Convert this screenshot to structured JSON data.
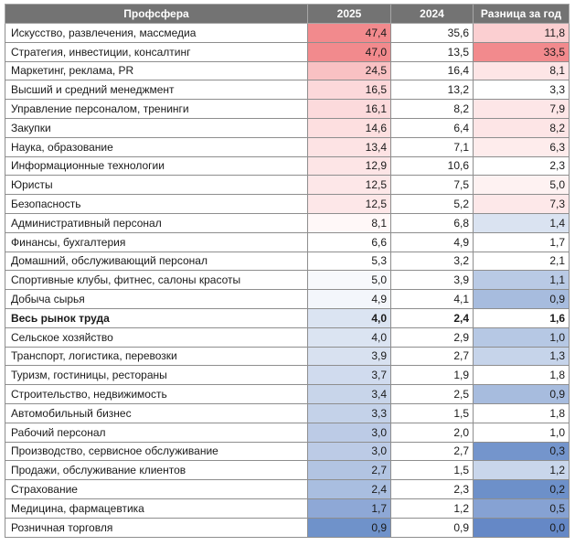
{
  "headers": {
    "name": "Профсфера",
    "y2025": "2025",
    "y2024": "2024",
    "diff": "Разница за год"
  },
  "rows": [
    {
      "name": "Искусство, развлечения, массмедиа",
      "y2025": "47,4",
      "y2024": "35,6",
      "diff": "11,8",
      "c25": "#f28a8d",
      "cdiff": "#fbcfd1"
    },
    {
      "name": "Стратегия, инвестиции, консалтинг",
      "y2025": "47,0",
      "y2024": "13,5",
      "diff": "33,5",
      "c25": "#f28a8d",
      "cdiff": "#f28a8d"
    },
    {
      "name": "Маркетинг, реклама, PR",
      "y2025": "24,5",
      "y2024": "16,4",
      "diff": "8,1",
      "c25": "#f9c1c3",
      "cdiff": "#fde5e6"
    },
    {
      "name": "Высший и средний менеджмент",
      "y2025": "16,5",
      "y2024": "13,2",
      "diff": "3,3",
      "c25": "#fcd8da",
      "cdiff": "#ffffff"
    },
    {
      "name": "Управление персоналом, тренинги",
      "y2025": "16,1",
      "y2024": "8,2",
      "diff": "7,9",
      "c25": "#fcdadc",
      "cdiff": "#fde6e7"
    },
    {
      "name": "Закупки",
      "y2025": "14,6",
      "y2024": "6,4",
      "diff": "8,2",
      "c25": "#fddfe0",
      "cdiff": "#fde5e6"
    },
    {
      "name": "Наука, образование",
      "y2025": "13,4",
      "y2024": "7,1",
      "diff": "6,3",
      "c25": "#fde3e4",
      "cdiff": "#feecec"
    },
    {
      "name": "Информационные технологии",
      "y2025": "12,9",
      "y2024": "10,6",
      "diff": "2,3",
      "c25": "#fde5e6",
      "cdiff": "#ffffff"
    },
    {
      "name": "Юристы",
      "y2025": "12,5",
      "y2024": "7,5",
      "diff": "5,0",
      "c25": "#fde7e8",
      "cdiff": "#fef2f2"
    },
    {
      "name": "Безопасность",
      "y2025": "12,5",
      "y2024": "5,2",
      "diff": "7,3",
      "c25": "#fde7e8",
      "cdiff": "#fde8e9"
    },
    {
      "name": "Административный персонал",
      "y2025": "8,1",
      "y2024": "6,8",
      "diff": "1,4",
      "c25": "#fff8f8",
      "cdiff": "#dae3f1"
    },
    {
      "name": "Финансы, бухгалтерия",
      "y2025": "6,6",
      "y2024": "4,9",
      "diff": "1,7",
      "c25": "#ffffff",
      "cdiff": "#ffffff"
    },
    {
      "name": "Домашний, обслуживающий персонал",
      "y2025": "5,3",
      "y2024": "3,2",
      "diff": "2,1",
      "c25": "#ffffff",
      "cdiff": "#ffffff"
    },
    {
      "name": "Спортивные клубы, фитнес, салоны красоты",
      "y2025": "5,0",
      "y2024": "3,9",
      "diff": "1,1",
      "c25": "#f7f9fc",
      "cdiff": "#b9cae5"
    },
    {
      "name": "Добыча сырья",
      "y2025": "4,9",
      "y2024": "4,1",
      "diff": "0,9",
      "c25": "#f3f6fb",
      "cdiff": "#a7bcde"
    },
    {
      "name": "Весь рынок труда",
      "y2025": "4,0",
      "y2024": "2,4",
      "diff": "1,6",
      "c25": "#dbe4f2",
      "cdiff": "#ffffff",
      "bold": true
    },
    {
      "name": "Сельское хозяйство",
      "y2025": "4,0",
      "y2024": "2,9",
      "diff": "1,0",
      "c25": "#dbe4f2",
      "cdiff": "#b6c8e4"
    },
    {
      "name": "Транспорт, логистика, перевозки",
      "y2025": "3,9",
      "y2024": "2,7",
      "diff": "1,3",
      "c25": "#d8e1f0",
      "cdiff": "#c6d4ea"
    },
    {
      "name": "Туризм, гостиницы, рестораны",
      "y2025": "3,7",
      "y2024": "1,9",
      "diff": "1,8",
      "c25": "#d0dbee",
      "cdiff": "#ffffff"
    },
    {
      "name": "Строительство, недвижимость",
      "y2025": "3,4",
      "y2024": "2,5",
      "diff": "0,9",
      "c25": "#c8d5ea",
      "cdiff": "#a7bcde"
    },
    {
      "name": "Автомобильный бизнес",
      "y2025": "3,3",
      "y2024": "1,5",
      "diff": "1,8",
      "c25": "#c4d2e9",
      "cdiff": "#ffffff"
    },
    {
      "name": "Рабочий персонал",
      "y2025": "3,0",
      "y2024": "2,0",
      "diff": "1,0",
      "c25": "#bccbe6",
      "cdiff": "#ffffff"
    },
    {
      "name": "Производство, сервисное обслуживание",
      "y2025": "3,0",
      "y2024": "2,7",
      "diff": "0,3",
      "c25": "#bccbe6",
      "cdiff": "#7495cc"
    },
    {
      "name": "Продажи, обслуживание клиентов",
      "y2025": "2,7",
      "y2024": "1,5",
      "diff": "1,2",
      "c25": "#b2c4e2",
      "cdiff": "#c9d6eb"
    },
    {
      "name": "Страхование",
      "y2025": "2,4",
      "y2024": "2,3",
      "diff": "0,2",
      "c25": "#a9bee0",
      "cdiff": "#6d90c9"
    },
    {
      "name": "Медицина, фармацевтика",
      "y2025": "1,7",
      "y2024": "1,2",
      "diff": "0,5",
      "c25": "#8ea8d6",
      "cdiff": "#86a2d3"
    },
    {
      "name": "Розничная торговля",
      "y2025": "0,9",
      "y2024": "0,9",
      "diff": "0,0",
      "c25": "#6f92ca",
      "cdiff": "#6588c6"
    }
  ]
}
